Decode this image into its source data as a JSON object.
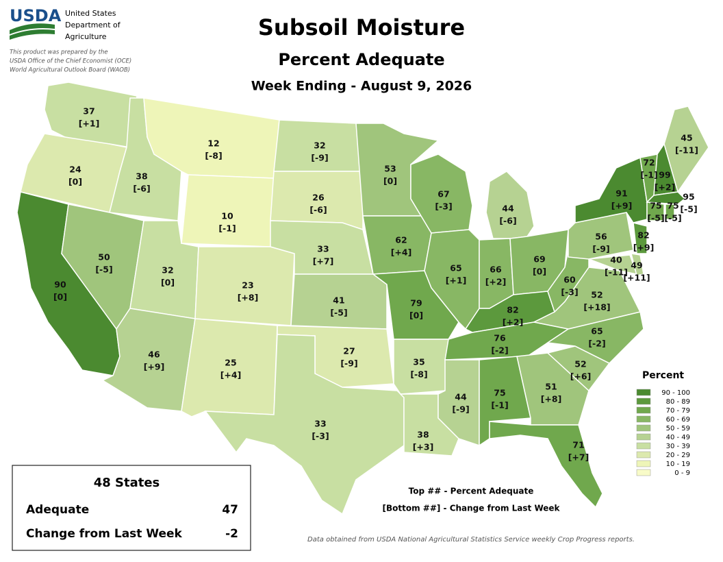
{
  "header": {
    "logo": "USDA",
    "agency": [
      "United States",
      "Department of",
      "Agriculture"
    ],
    "note": [
      "This product was prepared by the",
      "USDA Office of the Chief Economist (OCE)",
      "World Agricultural Outlook Board (WAOB)"
    ]
  },
  "title": "Subsoil Moisture",
  "subtitle": "Percent Adequate",
  "date": "Week Ending - August 9, 2026",
  "states": [
    {
      "value": 37,
      "change": "[+1]"
    },
    {
      "value": 24,
      "change": "[0]"
    },
    {
      "value": 90,
      "change": "[0]"
    },
    {
      "value": 38,
      "change": "[-6]"
    },
    {
      "value": 50,
      "change": "[-5]"
    },
    {
      "value": 32,
      "change": "[0]"
    },
    {
      "value": 46,
      "change": "[+9]"
    },
    {
      "value": 12,
      "change": "[-8]"
    },
    {
      "value": 10,
      "change": "[-1]"
    },
    {
      "value": 23,
      "change": "[+8]"
    },
    {
      "value": 25,
      "change": "[+4]"
    },
    {
      "value": 32,
      "change": "[-9]"
    },
    {
      "value": 26,
      "change": "[-6]"
    },
    {
      "value": 33,
      "change": "[+7]"
    },
    {
      "value": 41,
      "change": "[-5]"
    },
    {
      "value": 27,
      "change": "[-9]"
    },
    {
      "value": 33,
      "change": "[-3]"
    },
    {
      "value": 53,
      "change": "[0]"
    },
    {
      "value": 62,
      "change": "[+4]"
    },
    {
      "value": 79,
      "change": "[0]"
    },
    {
      "value": 35,
      "change": "[-8]"
    },
    {
      "value": 38,
      "change": "[+3]"
    },
    {
      "value": 67,
      "change": "[-3]"
    },
    {
      "value": 65,
      "change": "[+1]"
    },
    {
      "value": 44,
      "change": "[-6]"
    },
    {
      "value": 66,
      "change": "[+2]"
    },
    {
      "value": 69,
      "change": "[0]"
    },
    {
      "value": 82,
      "change": "[+2]"
    },
    {
      "value": 76,
      "change": "[-2]"
    },
    {
      "value": 44,
      "change": "[-9]"
    },
    {
      "value": 75,
      "change": "[-1]"
    },
    {
      "value": 51,
      "change": "[+8]"
    },
    {
      "value": 71,
      "change": "[+7]"
    },
    {
      "value": 52,
      "change": "[+6]"
    },
    {
      "value": 65,
      "change": "[-2]"
    },
    {
      "value": 52,
      "change": "[+18]"
    },
    {
      "value": 60,
      "change": "[-3]"
    },
    {
      "value": 56,
      "change": "[-9]"
    },
    {
      "value": 40,
      "change": "[-11]"
    },
    {
      "value": 49,
      "change": "[+11]"
    },
    {
      "value": 82,
      "change": "[+9]"
    },
    {
      "value": 91,
      "change": "[+9]"
    },
    {
      "value": 72,
      "change": "[-1]"
    },
    {
      "value": 99,
      "change": "[+2]"
    },
    {
      "value": 45,
      "change": "[-11]"
    },
    {
      "value": 75,
      "change": "[-5]"
    },
    {
      "value": 75,
      "change": "[-5]"
    },
    {
      "value": 95,
      "change": "[-5]"
    }
  ],
  "legend": {
    "title": "Percent",
    "items": [
      {
        "label": "90 - 100",
        "color": "#4b8a30"
      },
      {
        "label": "80 - 89",
        "color": "#5c993d"
      },
      {
        "label": "70 - 79",
        "color": "#70a84d"
      },
      {
        "label": "60 - 69",
        "color": "#88b764"
      },
      {
        "label": "50 - 59",
        "color": "#a0c57c"
      },
      {
        "label": "40 - 49",
        "color": "#b6d292"
      },
      {
        "label": "30 - 39",
        "color": "#c8dfa2"
      },
      {
        "label": "20 - 29",
        "color": "#dce9ae"
      },
      {
        "label": "10 - 19",
        "color": "#eef5b8"
      },
      {
        "label": "0 - 9",
        "color": "#f8fbc8"
      }
    ]
  },
  "summary": {
    "title": "48 States",
    "rows": [
      {
        "label": "Adequate",
        "value": 47
      },
      {
        "label": "Change from Last Week",
        "value": -2
      }
    ]
  },
  "key": [
    "Top ## - Percent Adequate",
    "[Bottom ##] - Change from Last Week"
  ],
  "source": "Data obtained from USDA National Agricultural Statistics Service weekly Crop Progress reports."
}
